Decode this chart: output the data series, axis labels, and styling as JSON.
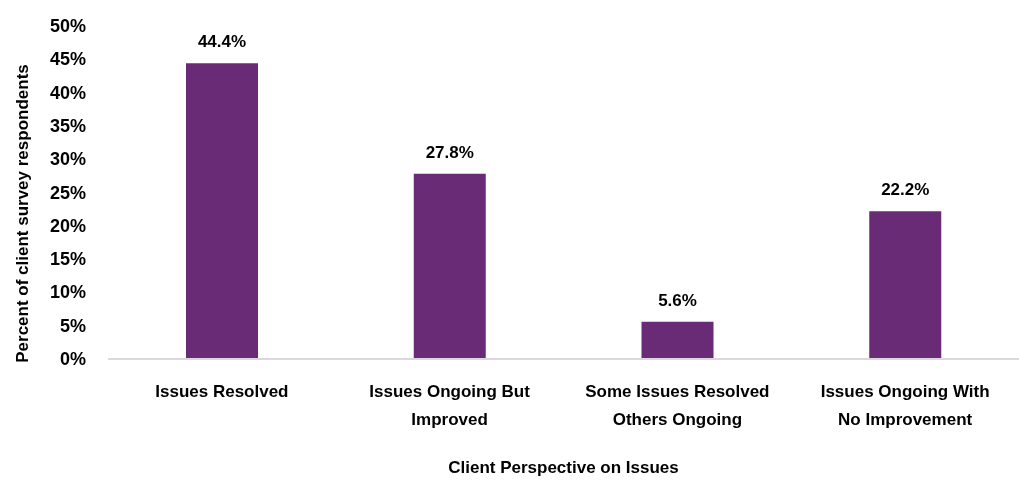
{
  "chart_data": {
    "type": "bar",
    "xlabel": "Client Perspective on Issues",
    "ylabel": "Percent of client survey respondents",
    "categories": [
      "Issues Resolved",
      "Issues Ongoing But Improved",
      "Some Issues Resolved Others Ongoing",
      "Issues Ongoing With No Improvement"
    ],
    "values": [
      44.4,
      27.8,
      5.6,
      22.2
    ],
    "color": "#692b76",
    "value_labels": [
      "44.4%",
      "27.8%",
      "5.6%",
      "22.2%"
    ],
    "ylim": [
      0,
      50
    ],
    "yticks": [
      {
        "value": 0,
        "label": "0%"
      },
      {
        "value": 5,
        "label": "5%"
      },
      {
        "value": 10,
        "label": "10%"
      },
      {
        "value": 15,
        "label": "15%"
      },
      {
        "value": 20,
        "label": "20%"
      },
      {
        "value": 25,
        "label": "25%"
      },
      {
        "value": 30,
        "label": "30%"
      },
      {
        "value": 35,
        "label": "35%"
      },
      {
        "value": 40,
        "label": "40%"
      },
      {
        "value": 45,
        "label": "45%"
      },
      {
        "value": 50,
        "label": "50%"
      }
    ]
  }
}
